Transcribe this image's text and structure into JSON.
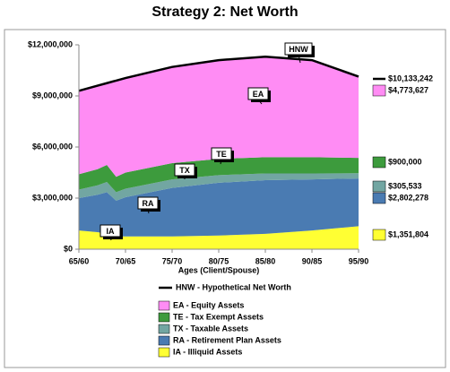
{
  "chart_data": {
    "type": "stacked_area",
    "title": "Strategy 2: Net Worth",
    "x_label": "Ages (Client/Spouse)",
    "x": [
      65,
      67,
      68,
      69,
      70,
      75,
      80,
      85,
      90,
      95
    ],
    "xlim": [
      65,
      95
    ],
    "xticks": [
      {
        "value": 65,
        "label": "65/60"
      },
      {
        "value": 70,
        "label": "70/65"
      },
      {
        "value": 75,
        "label": "75/70"
      },
      {
        "value": 80,
        "label": "80/75"
      },
      {
        "value": 85,
        "label": "85/80"
      },
      {
        "value": 90,
        "label": "90/85"
      },
      {
        "value": 95,
        "label": "95/90"
      }
    ],
    "ylim": [
      0,
      12000000
    ],
    "yticks": [
      {
        "value": 0,
        "label": "$0"
      },
      {
        "value": 3000000,
        "label": "$3,000,000"
      },
      {
        "value": 6000000,
        "label": "$6,000,000"
      },
      {
        "value": 9000000,
        "label": "$9,000,000"
      },
      {
        "value": 12000000,
        "label": "$12,000,000"
      }
    ],
    "grid": false,
    "series": [
      {
        "name": "HNW - Hypothetical Net Worth",
        "code": "HNW",
        "kind": "line",
        "color": "#000000",
        "values": [
          9300000,
          9600000,
          9750000,
          9900000,
          10050000,
          10700000,
          11100000,
          11300000,
          11100000,
          10133242
        ],
        "value_labels": [
          null,
          null,
          null,
          null,
          null,
          null,
          null,
          null,
          null,
          "$10,133,242"
        ]
      },
      {
        "name": "EA - Equity Assets",
        "code": "EA",
        "kind": "area",
        "color": "#ff8cf4",
        "values": [
          4900000,
          4900000,
          4800000,
          5650000,
          5550000,
          5650000,
          5800000,
          5900000,
          5700000,
          4773627
        ],
        "value_labels": [
          null,
          null,
          null,
          null,
          null,
          null,
          null,
          null,
          null,
          "$4,773,627"
        ]
      },
      {
        "name": "TE - Tax Exempt Assets",
        "code": "TE",
        "kind": "area",
        "color": "#3d9b3d",
        "values": [
          900000,
          950000,
          1000000,
          900000,
          950000,
          950000,
          950000,
          950000,
          950000,
          900000
        ],
        "value_labels": [
          null,
          null,
          null,
          null,
          null,
          null,
          null,
          null,
          null,
          "$900,000"
        ]
      },
      {
        "name": "TX - Taxable Assets",
        "code": "TX",
        "kind": "area",
        "color": "#72a6a2",
        "values": [
          500000,
          550000,
          600000,
          500000,
          500000,
          500000,
          450000,
          400000,
          350000,
          305533
        ],
        "value_labels": [
          null,
          null,
          null,
          null,
          null,
          null,
          null,
          null,
          null,
          "$305,533"
        ]
      },
      {
        "name": "RA - Retirement Plan Assets",
        "code": "RA",
        "kind": "area",
        "color": "#4a7bb2",
        "values": [
          1900000,
          2200000,
          2450000,
          2100000,
          2300000,
          2850000,
          3100000,
          3150000,
          3000000,
          2802278
        ],
        "value_labels": [
          null,
          null,
          null,
          null,
          null,
          null,
          null,
          null,
          null,
          "$2,802,278"
        ]
      },
      {
        "name": "IA - Illiquid Assets",
        "code": "IA",
        "kind": "area",
        "color": "#ffff33",
        "values": [
          1100000,
          1000000,
          900000,
          750000,
          750000,
          750000,
          800000,
          900000,
          1100000,
          1351804
        ],
        "value_labels": [
          null,
          null,
          null,
          null,
          null,
          null,
          null,
          null,
          null,
          "$1,351,804"
        ]
      }
    ]
  }
}
